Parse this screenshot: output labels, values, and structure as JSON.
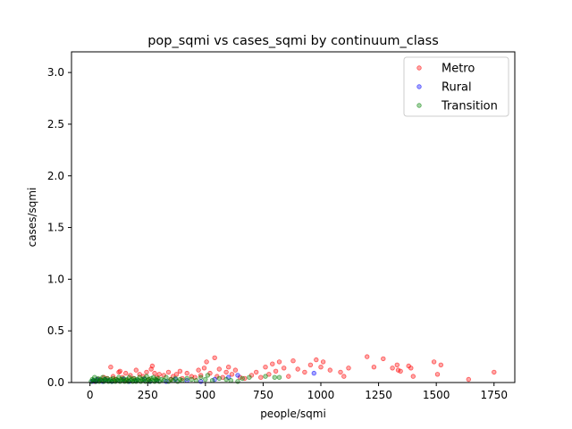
{
  "chart_data": {
    "type": "scatter",
    "title": "pop_sqmi vs cases_sqmi by continuum_class",
    "xlabel": "people/sqmi",
    "ylabel": "cases/sqmi",
    "xlim": [
      -80,
      1840
    ],
    "ylim": [
      0,
      3.2
    ],
    "xticks": [
      "0",
      "250",
      "500",
      "750",
      "1000",
      "1250",
      "1500",
      "1750"
    ],
    "yticks": [
      "0.0",
      "0.5",
      "1.0",
      "1.5",
      "2.0",
      "2.5",
      "3.0"
    ],
    "grid": false,
    "legend_position": "top-right",
    "series": [
      {
        "name": "Metro",
        "color": "#ff0000",
        "points": [
          [
            20,
            0.01
          ],
          [
            35,
            0.03
          ],
          [
            50,
            0.02
          ],
          [
            60,
            0.05
          ],
          [
            75,
            0.04
          ],
          [
            90,
            0.15
          ],
          [
            100,
            0.06
          ],
          [
            110,
            0.03
          ],
          [
            125,
            0.1
          ],
          [
            130,
            0.11
          ],
          [
            140,
            0.05
          ],
          [
            155,
            0.09
          ],
          [
            160,
            0.02
          ],
          [
            175,
            0.07
          ],
          [
            190,
            0.04
          ],
          [
            200,
            0.12
          ],
          [
            215,
            0.08
          ],
          [
            230,
            0.06
          ],
          [
            245,
            0.1
          ],
          [
            255,
            0.03
          ],
          [
            265,
            0.13
          ],
          [
            270,
            0.16
          ],
          [
            280,
            0.09
          ],
          [
            290,
            0.05
          ],
          [
            300,
            0.08
          ],
          [
            320,
            0.07
          ],
          [
            340,
            0.1
          ],
          [
            350,
            0.03
          ],
          [
            360,
            0.06
          ],
          [
            375,
            0.08
          ],
          [
            390,
            0.11
          ],
          [
            400,
            0.04
          ],
          [
            420,
            0.09
          ],
          [
            440,
            0.06
          ],
          [
            455,
            0.05
          ],
          [
            470,
            0.12
          ],
          [
            480,
            0.07
          ],
          [
            495,
            0.14
          ],
          [
            505,
            0.2
          ],
          [
            520,
            0.09
          ],
          [
            540,
            0.24
          ],
          [
            550,
            0.06
          ],
          [
            560,
            0.13
          ],
          [
            575,
            0.05
          ],
          [
            590,
            0.1
          ],
          [
            600,
            0.15
          ],
          [
            615,
            0.08
          ],
          [
            630,
            0.12
          ],
          [
            650,
            0.05
          ],
          [
            670,
            0.04
          ],
          [
            700,
            0.07
          ],
          [
            720,
            0.1
          ],
          [
            740,
            0.05
          ],
          [
            760,
            0.15
          ],
          [
            775,
            0.08
          ],
          [
            790,
            0.18
          ],
          [
            805,
            0.11
          ],
          [
            820,
            0.2
          ],
          [
            840,
            0.14
          ],
          [
            860,
            0.06
          ],
          [
            880,
            0.21
          ],
          [
            900,
            0.13
          ],
          [
            930,
            0.1
          ],
          [
            955,
            0.17
          ],
          [
            980,
            0.22
          ],
          [
            1000,
            0.15
          ],
          [
            1010,
            0.2
          ],
          [
            1040,
            0.12
          ],
          [
            1085,
            0.1
          ],
          [
            1100,
            0.06
          ],
          [
            1120,
            0.14
          ],
          [
            1200,
            0.25
          ],
          [
            1230,
            0.15
          ],
          [
            1270,
            0.23
          ],
          [
            1310,
            0.14
          ],
          [
            1330,
            0.17
          ],
          [
            1335,
            0.12
          ],
          [
            1345,
            0.11
          ],
          [
            1380,
            0.16
          ],
          [
            1390,
            0.14
          ],
          [
            1400,
            0.06
          ],
          [
            1490,
            0.2
          ],
          [
            1505,
            0.08
          ],
          [
            1520,
            0.17
          ],
          [
            1640,
            0.03
          ],
          [
            1750,
            0.1
          ]
        ]
      },
      {
        "name": "Rural",
        "color": "#0000ff",
        "points": [
          [
            10,
            0.01
          ],
          [
            15,
            0.02
          ],
          [
            25,
            0.01
          ],
          [
            30,
            0.03
          ],
          [
            40,
            0.02
          ],
          [
            55,
            0.01
          ],
          [
            65,
            0.03
          ],
          [
            80,
            0.02
          ],
          [
            95,
            0.01
          ],
          [
            120,
            0.02
          ],
          [
            145,
            0.03
          ],
          [
            170,
            0.01
          ],
          [
            200,
            0.02
          ],
          [
            235,
            0.03
          ],
          [
            260,
            0.01
          ],
          [
            290,
            0.02
          ],
          [
            330,
            0.01
          ],
          [
            370,
            0.03
          ],
          [
            420,
            0.02
          ],
          [
            480,
            0.01
          ],
          [
            540,
            0.03
          ],
          [
            600,
            0.05
          ],
          [
            640,
            0.07
          ],
          [
            970,
            0.09
          ]
        ]
      },
      {
        "name": "Transition",
        "color": "#008000",
        "points": [
          [
            5,
            0.01
          ],
          [
            10,
            0.03
          ],
          [
            15,
            0.02
          ],
          [
            20,
            0.05
          ],
          [
            25,
            0.01
          ],
          [
            30,
            0.02
          ],
          [
            35,
            0.04
          ],
          [
            40,
            0.01
          ],
          [
            45,
            0.03
          ],
          [
            50,
            0.02
          ],
          [
            55,
            0.05
          ],
          [
            60,
            0.01
          ],
          [
            65,
            0.03
          ],
          [
            70,
            0.02
          ],
          [
            75,
            0.04
          ],
          [
            80,
            0.01
          ],
          [
            85,
            0.02
          ],
          [
            90,
            0.03
          ],
          [
            95,
            0.01
          ],
          [
            100,
            0.04
          ],
          [
            105,
            0.02
          ],
          [
            110,
            0.01
          ],
          [
            115,
            0.03
          ],
          [
            120,
            0.02
          ],
          [
            125,
            0.05
          ],
          [
            130,
            0.01
          ],
          [
            135,
            0.03
          ],
          [
            140,
            0.02
          ],
          [
            145,
            0.04
          ],
          [
            150,
            0.01
          ],
          [
            155,
            0.02
          ],
          [
            160,
            0.03
          ],
          [
            165,
            0.01
          ],
          [
            170,
            0.05
          ],
          [
            175,
            0.02
          ],
          [
            180,
            0.03
          ],
          [
            185,
            0.01
          ],
          [
            190,
            0.04
          ],
          [
            195,
            0.02
          ],
          [
            200,
            0.01
          ],
          [
            205,
            0.03
          ],
          [
            210,
            0.02
          ],
          [
            215,
            0.05
          ],
          [
            220,
            0.01
          ],
          [
            225,
            0.03
          ],
          [
            230,
            0.02
          ],
          [
            235,
            0.04
          ],
          [
            240,
            0.01
          ],
          [
            245,
            0.06
          ],
          [
            250,
            0.02
          ],
          [
            255,
            0.03
          ],
          [
            260,
            0.01
          ],
          [
            265,
            0.04
          ],
          [
            270,
            0.02
          ],
          [
            275,
            0.05
          ],
          [
            280,
            0.01
          ],
          [
            285,
            0.03
          ],
          [
            290,
            0.02
          ],
          [
            295,
            0.04
          ],
          [
            300,
            0.01
          ],
          [
            310,
            0.03
          ],
          [
            320,
            0.02
          ],
          [
            330,
            0.05
          ],
          [
            340,
            0.01
          ],
          [
            350,
            0.03
          ],
          [
            360,
            0.02
          ],
          [
            370,
            0.04
          ],
          [
            380,
            0.01
          ],
          [
            390,
            0.03
          ],
          [
            400,
            0.02
          ],
          [
            420,
            0.04
          ],
          [
            440,
            0.03
          ],
          [
            460,
            0.02
          ],
          [
            480,
            0.05
          ],
          [
            500,
            0.03
          ],
          [
            510,
            0.07
          ],
          [
            530,
            0.02
          ],
          [
            560,
            0.04
          ],
          [
            590,
            0.03
          ],
          [
            610,
            0.02
          ],
          [
            640,
            0.01
          ],
          [
            660,
            0.04
          ],
          [
            690,
            0.05
          ],
          [
            760,
            0.06
          ],
          [
            800,
            0.05
          ],
          [
            820,
            0.05
          ]
        ]
      }
    ]
  }
}
